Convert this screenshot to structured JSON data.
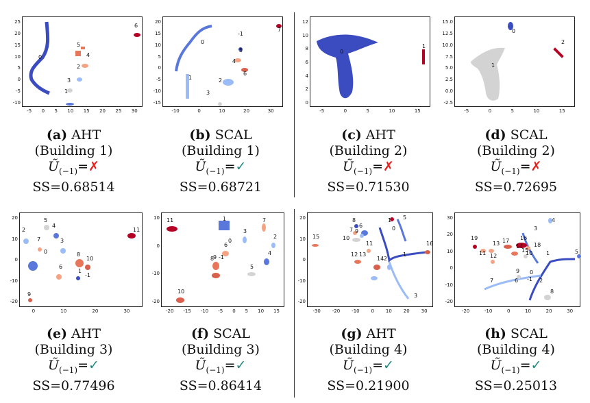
{
  "panels": [
    {
      "id": "a",
      "letter": "(a)",
      "method": "AHT",
      "building": "(Building 1)",
      "util": "Ũ",
      "sub": "(−1)",
      "mark": "✗",
      "mark_type": "cross",
      "ss": "SS=0.68514",
      "xticks": [
        "-5",
        "0",
        "5",
        "10",
        "15",
        "20",
        "25",
        "30"
      ],
      "yticks": [
        "25",
        "20",
        "15",
        "10",
        "5",
        "0",
        "-5",
        "-10"
      ],
      "cluster_labels": [
        "0",
        "1",
        "2",
        "3",
        "4",
        "5",
        "6"
      ]
    },
    {
      "id": "b",
      "letter": "(b)",
      "method": "SCAL",
      "building": "(Building 1)",
      "util": "Ũ",
      "sub": "(−1)",
      "mark": "✓",
      "mark_type": "check",
      "ss": "SS=0.68721",
      "xticks": [
        "-10",
        "0",
        "10",
        "20",
        "30"
      ],
      "yticks": [
        "20",
        "15",
        "10",
        "5",
        "0",
        "-5",
        "-10",
        "-15"
      ],
      "cluster_labels": [
        "0",
        "1",
        "2",
        "3",
        "4",
        "5",
        "6",
        "7",
        "-1"
      ]
    },
    {
      "id": "c",
      "letter": "(c)",
      "method": "AHT",
      "building": "(Building 2)",
      "util": "Ũ",
      "sub": "(−1)",
      "mark": "✗",
      "mark_type": "cross",
      "ss": "SS=0.71530",
      "xticks": [
        "-5",
        "0",
        "5",
        "10",
        "15"
      ],
      "yticks": [
        "12",
        "10",
        "8",
        "6",
        "4",
        "2",
        "0"
      ],
      "cluster_labels": [
        "0",
        "1"
      ]
    },
    {
      "id": "d",
      "letter": "(d)",
      "method": "SCAL",
      "building": "(Building 2)",
      "util": "Ũ",
      "sub": "(−1)",
      "mark": "✗",
      "mark_type": "cross",
      "ss": "SS=0.72695",
      "xticks": [
        "-5",
        "0",
        "5",
        "10",
        "15"
      ],
      "yticks": [
        "15.0",
        "12.5",
        "10.0",
        "7.5",
        "5.0",
        "2.5",
        "0.0",
        "-2.5"
      ],
      "cluster_labels": [
        "0",
        "1",
        "2"
      ]
    },
    {
      "id": "e",
      "letter": "(e)",
      "method": "AHT",
      "building": "(Building 3)",
      "util": "Ũ",
      "sub": "(−1)",
      "mark": "✓",
      "mark_type": "check",
      "ss": "SS=0.77496",
      "xticks": [
        "0",
        "10",
        "20",
        "30"
      ],
      "yticks": [
        "20",
        "10",
        "0",
        "-10",
        "-20"
      ],
      "cluster_labels": [
        "0",
        "1",
        "2",
        "3",
        "4",
        "5",
        "6",
        "7",
        "8",
        "9",
        "10",
        "11",
        "-1"
      ]
    },
    {
      "id": "f",
      "letter": "(f)",
      "method": "SCAL",
      "building": "(Building 3)",
      "util": "Ũ",
      "sub": "(−1)",
      "mark": "✓",
      "mark_type": "check",
      "ss": "SS=0.86414",
      "xticks": [
        "-20",
        "-15",
        "-10",
        "-5",
        "0",
        "5",
        "10",
        "15"
      ],
      "yticks": [
        "10",
        "0",
        "-10",
        "-20"
      ],
      "cluster_labels": [
        "0",
        "1",
        "2",
        "3",
        "4",
        "5",
        "6",
        "7",
        "8",
        "9",
        "10",
        "11",
        "-1"
      ]
    },
    {
      "id": "g",
      "letter": "(g)",
      "method": "AHT",
      "building": "(Building 4)",
      "util": "Ũ",
      "sub": "(−1)",
      "mark": "✓",
      "mark_type": "check",
      "ss": "SS=0.21900",
      "xticks": [
        "-30",
        "-20",
        "-10",
        "0",
        "10",
        "20",
        "30"
      ],
      "yticks": [
        "20",
        "10",
        "0",
        "-10",
        "-20"
      ],
      "cluster_labels": [
        "0",
        "1",
        "2",
        "3",
        "4",
        "5",
        "6",
        "7",
        "8",
        "9",
        "10",
        "11",
        "12",
        "13",
        "14",
        "15",
        "16"
      ]
    },
    {
      "id": "h",
      "letter": "(h)",
      "method": "SCAL",
      "building": "(Building 4)",
      "util": "Ũ",
      "sub": "(−1)",
      "mark": "✓",
      "mark_type": "check",
      "ss": "SS=0.25013",
      "xticks": [
        "-20",
        "-10",
        "0",
        "10",
        "20",
        "30"
      ],
      "yticks": [
        "30",
        "20",
        "10",
        "0",
        "-10",
        "-20"
      ],
      "cluster_labels": [
        "0",
        "1",
        "2",
        "3",
        "4",
        "5",
        "6",
        "7",
        "8",
        "9",
        "10",
        "11",
        "12",
        "13",
        "14",
        "15",
        "16",
        "17",
        "18",
        "19",
        "-1"
      ]
    }
  ],
  "colors": {
    "blue_dark": "#3b4cc0",
    "blue": "#5a77db",
    "blue_light": "#9bbcf7",
    "grey": "#d3d3d3",
    "salmon": "#f4a384",
    "red": "#d8604c",
    "red_dark": "#b40426",
    "cross": "#e8201b",
    "check": "#1f8a80"
  }
}
